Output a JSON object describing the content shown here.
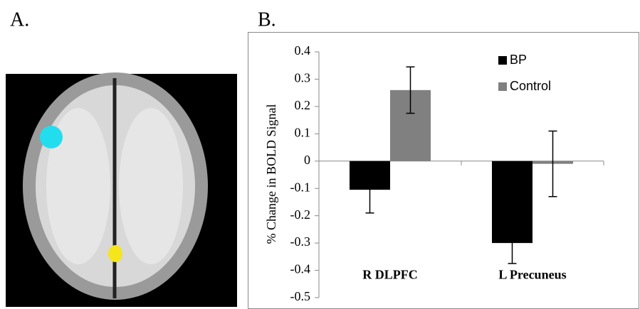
{
  "panel_labels": [
    "A.",
    "B."
  ],
  "chart_data": {
    "type": "bar",
    "y_label": "% Change in BOLD Signal",
    "categories": [
      "R DLPFC",
      "L Precuneus"
    ],
    "series": [
      {
        "name": "BP",
        "color": "#000000",
        "values": [
          -0.105,
          -0.3
        ],
        "errors": [
          0.085,
          0.075
        ]
      },
      {
        "name": "Control",
        "color": "#808080",
        "values": [
          0.26,
          -0.01
        ],
        "errors": [
          0.085,
          0.12
        ]
      }
    ],
    "ylim": [
      -0.5,
      0.4
    ],
    "yticks": [
      -0.5,
      -0.4,
      -0.3,
      -0.2,
      -0.1,
      0,
      0.1,
      0.2,
      0.3,
      0.4
    ],
    "legend": "upper right"
  }
}
